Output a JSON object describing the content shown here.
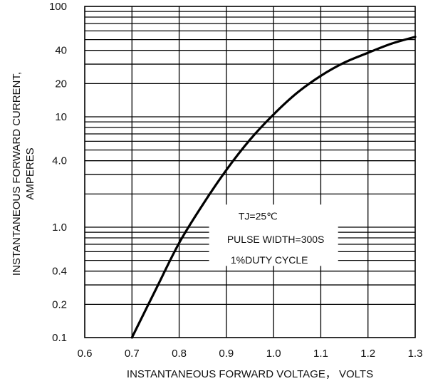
{
  "chart_data": {
    "type": "line",
    "title": "",
    "xlabel": "INSTANTANEOUS FORWARD VOLTAGE， VOLTS",
    "ylabel_lines": [
      "INSTANTANEOUS FORWARD CURRENT,",
      "AMPERES"
    ],
    "x_scale": "linear",
    "y_scale": "log",
    "xlim": [
      0.6,
      1.3
    ],
    "ylim": [
      0.1,
      100
    ],
    "x_ticks": [
      {
        "value": 0.6,
        "label": "0.6"
      },
      {
        "value": 0.7,
        "label": "0.7"
      },
      {
        "value": 0.8,
        "label": "0.8"
      },
      {
        "value": 0.9,
        "label": "0.9"
      },
      {
        "value": 1.0,
        "label": "1.0"
      },
      {
        "value": 1.1,
        "label": "1.1"
      },
      {
        "value": 1.2,
        "label": "1.2"
      },
      {
        "value": 1.3,
        "label": "1.3"
      }
    ],
    "y_ticks": [
      {
        "value": 0.1,
        "label": "0.1"
      },
      {
        "value": 0.2,
        "label": "0.2"
      },
      {
        "value": 0.4,
        "label": "0.4"
      },
      {
        "value": 1.0,
        "label": "1.0"
      },
      {
        "value": 4.0,
        "label": "4.0"
      },
      {
        "value": 10,
        "label": "10"
      },
      {
        "value": 20,
        "label": "20"
      },
      {
        "value": 40,
        "label": "40"
      },
      {
        "value": 100,
        "label": "100"
      }
    ],
    "grid": true,
    "annotation_lines": [
      "TJ=25℃",
      "PULSE WIDTH=300S",
      "1%DUTY CYCLE"
    ],
    "series": [
      {
        "color": "#000000",
        "x": [
          0.7,
          0.75,
          0.8,
          0.85,
          0.9,
          0.95,
          1.0,
          1.05,
          1.1,
          1.15,
          1.2,
          1.25,
          1.3
        ],
        "y": [
          0.1,
          0.27,
          0.72,
          1.6,
          3.3,
          6.2,
          10.5,
          16.5,
          23.5,
          31,
          38,
          46,
          53
        ]
      }
    ]
  }
}
